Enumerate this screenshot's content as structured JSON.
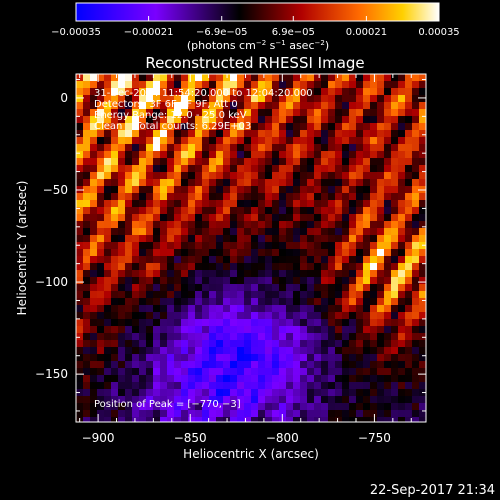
{
  "chart_data": {
    "type": "heatmap",
    "title": "Reconstructed RHESSI Image",
    "xlabel": "Heliocentric X (arcsec)",
    "ylabel": "Heliocentric Y (arcsec)",
    "xlim": [
      -912,
      -722
    ],
    "ylim": [
      -176,
      13
    ],
    "x_ticks": [
      -900,
      -850,
      -800,
      -750
    ],
    "x_tick_labels": [
      "−900",
      "−850",
      "−800",
      "−750"
    ],
    "y_ticks": [
      0,
      -50,
      -100,
      -150
    ],
    "y_tick_labels": [
      "0",
      "−50",
      "−100",
      "−150"
    ],
    "annotations": [
      "31-Dec-2014 11:54:20.000 to 12:04:20.000",
      "Detectors: 3F 6F 8F 9F, Att 0",
      "Energy Range: 12.0 - 25.0 keV",
      "Clean    Total counts: 6.29E+03"
    ],
    "peak_label": "Position of Peak = [−770,−3]",
    "peak": {
      "x": -770,
      "y": -3
    },
    "colorbar": {
      "ticks": [
        -0.00035,
        -0.00021,
        -6.9e-05,
        6.9e-05,
        0.00021,
        0.00035
      ],
      "tick_labels": [
        "−0.00035",
        "−0.00021",
        "−6.9e−05",
        "6.9e−05",
        "0.00021",
        "0.00035"
      ],
      "unit_label_main": "(photons cm",
      "unit_label_exp1": "−2",
      "unit_label_mid": " s",
      "unit_label_exp2": "−1",
      "unit_label_end": " asec",
      "unit_label_exp3": "−2",
      "unit_label_close": ")",
      "colors": [
        "#0000ff",
        "#7a00ff",
        "#000000",
        "#b00000",
        "#ff6a00",
        "#ffd000",
        "#ffffff"
      ]
    },
    "grid": false
  },
  "footer": {
    "timestamp": "22-Sep-2017 21:34"
  }
}
